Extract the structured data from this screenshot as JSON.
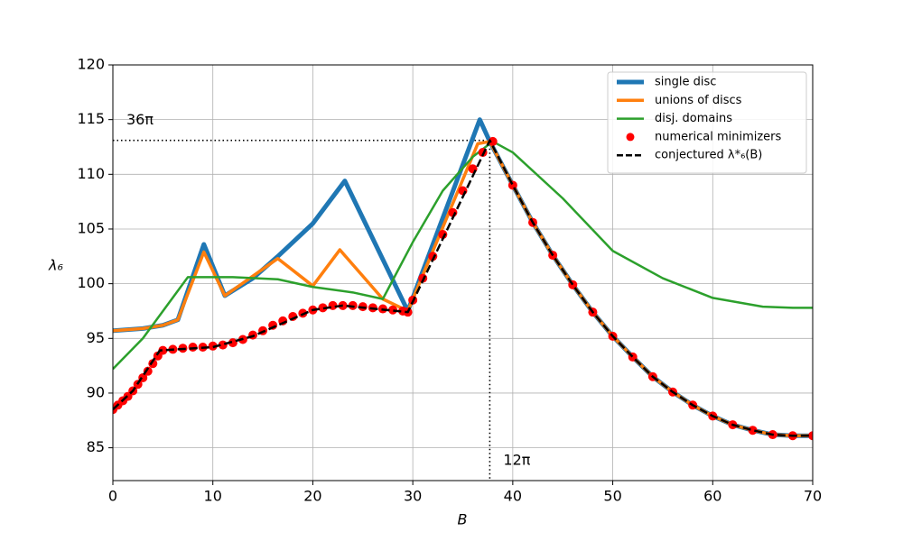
{
  "chart_data": {
    "type": "line",
    "xlabel": "B",
    "ylabel": "λ₆",
    "xlim": [
      0,
      70
    ],
    "ylim": [
      82,
      120
    ],
    "xticks": [
      0,
      10,
      20,
      30,
      40,
      50,
      60,
      70
    ],
    "yticks": [
      85,
      90,
      95,
      100,
      105,
      110,
      115,
      120
    ],
    "grid": true,
    "legend": "upper right",
    "series": [
      {
        "name": "single disc",
        "color": "#1f77b4",
        "linewidth": 5,
        "linestyle": "solid",
        "marker": "none",
        "x": [
          0,
          3,
          5,
          6.5,
          9.1,
          11.2,
          14,
          16.5,
          20,
          23.2,
          29.5,
          36.7,
          37.7,
          40,
          42,
          44,
          46,
          48,
          50,
          52,
          54,
          56,
          58,
          60,
          62,
          64,
          66,
          68,
          70
        ],
        "values": [
          95.7,
          95.9,
          96.2,
          96.7,
          103.6,
          98.9,
          100.5,
          102.5,
          105.5,
          109.4,
          97.5,
          115,
          113,
          109,
          105.6,
          102.6,
          99.9,
          97.4,
          95.2,
          93.3,
          91.5,
          90.1,
          88.9,
          87.9,
          87.1,
          86.6,
          86.2,
          86.1,
          86.1
        ]
      },
      {
        "name": "unions of discs",
        "color": "#ff7f0e",
        "linewidth": 3.5,
        "linestyle": "solid",
        "marker": "none",
        "x": [
          0,
          3,
          5,
          6.5,
          9.1,
          11.2,
          16.5,
          20,
          22.7,
          27,
          29.5,
          36.5,
          37.7,
          40,
          42,
          44,
          46,
          48,
          50,
          52,
          54,
          56,
          58,
          60,
          62,
          64,
          66,
          68,
          70
        ],
        "values": [
          95.7,
          95.9,
          96.2,
          96.7,
          102.9,
          98.9,
          102.3,
          99.8,
          103.1,
          98.6,
          97.5,
          112.8,
          113,
          109,
          105.6,
          102.6,
          99.9,
          97.4,
          95.2,
          93.3,
          91.5,
          90.1,
          88.9,
          87.9,
          87.1,
          86.6,
          86.2,
          86.1,
          86.1
        ]
      },
      {
        "name": "disj. domains",
        "color": "#2ca02c",
        "linewidth": 2.5,
        "linestyle": "solid",
        "marker": "none",
        "x": [
          0,
          3,
          7.5,
          12,
          16.5,
          20,
          24,
          27,
          30,
          33,
          36,
          38,
          40,
          45,
          50,
          55,
          60,
          65,
          68,
          70
        ],
        "values": [
          92.2,
          95,
          100.6,
          100.6,
          100.4,
          99.7,
          99.2,
          98.6,
          103.8,
          108.5,
          111.6,
          113,
          112,
          107.8,
          103,
          100.5,
          98.7,
          97.9,
          97.8,
          97.8
        ]
      },
      {
        "name": "numerical minimizers",
        "color": "#ff0000",
        "linewidth": 0,
        "linestyle": "none",
        "marker": "circle",
        "x": [
          0,
          0.5,
          1,
          1.5,
          2,
          2.5,
          3,
          3.5,
          4,
          4.5,
          5,
          6,
          7,
          8,
          9,
          10,
          11,
          12,
          13,
          14,
          15,
          16,
          17,
          18,
          19,
          20,
          21,
          22,
          23,
          24,
          25,
          26,
          27,
          28,
          29,
          29.5,
          30,
          31,
          32,
          33,
          34,
          35,
          36,
          37,
          38,
          40,
          42,
          44,
          46,
          48,
          50,
          52,
          54,
          56,
          58,
          60,
          62,
          64,
          66,
          68,
          70
        ],
        "values": [
          88.5,
          88.9,
          89.3,
          89.7,
          90.2,
          90.8,
          91.4,
          92,
          92.7,
          93.4,
          93.9,
          94,
          94.1,
          94.2,
          94.2,
          94.3,
          94.4,
          94.6,
          94.9,
          95.3,
          95.7,
          96.2,
          96.6,
          97,
          97.3,
          97.6,
          97.8,
          98,
          98,
          98,
          97.9,
          97.8,
          97.7,
          97.6,
          97.5,
          97.4,
          98.5,
          100.5,
          102.5,
          104.5,
          106.5,
          108.5,
          110.5,
          112,
          113,
          109,
          105.6,
          102.6,
          99.9,
          97.4,
          95.2,
          93.3,
          91.5,
          90.1,
          88.9,
          87.9,
          87.1,
          86.6,
          86.2,
          86.1,
          86.1
        ]
      },
      {
        "name": "conjectured λ*₆(B)",
        "color": "#000000",
        "linewidth": 2.5,
        "linestyle": "dashed",
        "marker": "none",
        "x": [
          0,
          2,
          4.7,
          10,
          14,
          20,
          23,
          29.5,
          37.7,
          40,
          42,
          44,
          46,
          48,
          50,
          52,
          54,
          56,
          58,
          60,
          62,
          64,
          66,
          68,
          70
        ],
        "values": [
          88.5,
          90.2,
          93.9,
          94.2,
          95.2,
          97.6,
          98,
          97.4,
          113.1,
          109,
          105.6,
          102.6,
          99.9,
          97.4,
          95.2,
          93.3,
          91.5,
          90.1,
          88.9,
          87.9,
          87.1,
          86.6,
          86.2,
          86.1,
          86.1
        ]
      }
    ],
    "hline": {
      "y": 113.1,
      "xmax": 37.7,
      "label": "36π"
    },
    "vline": {
      "x": 37.7,
      "ymax": 113.1,
      "label": "12π"
    }
  }
}
